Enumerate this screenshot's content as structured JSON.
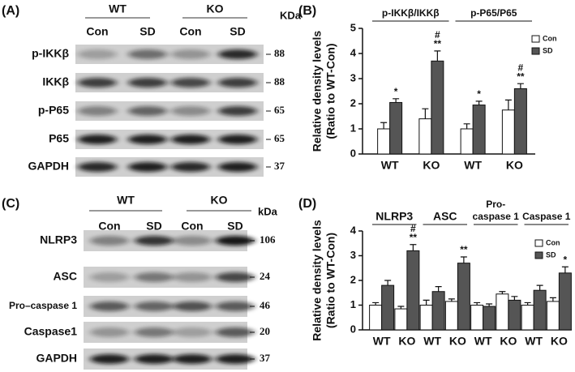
{
  "blot_panels": [
    {
      "label": "(A)",
      "groups": [
        {
          "label": "WT",
          "lanes": [
            "Con",
            "SD"
          ]
        },
        {
          "label": "KO",
          "lanes": [
            "Con",
            "SD"
          ]
        }
      ],
      "unit": "KDa",
      "rows": [
        {
          "name": "p-IKKβ",
          "kda": 88
        },
        {
          "name": "IKKβ",
          "kda": 88
        },
        {
          "name": "p-P65",
          "kda": 65
        },
        {
          "name": "P65",
          "kda": 65
        },
        {
          "name": "GAPDH",
          "kda": 37
        }
      ]
    },
    {
      "label": "(C)",
      "groups": [
        {
          "label": "WT",
          "lanes": [
            "Con",
            "SD"
          ]
        },
        {
          "label": "KO",
          "lanes": [
            "Con",
            "SD"
          ]
        }
      ],
      "unit": "kDa",
      "rows": [
        {
          "name": "NLRP3",
          "kda": 106
        },
        {
          "name": "ASC",
          "kda": 24
        },
        {
          "name": "Pro–caspase 1",
          "kda": 46
        },
        {
          "name": "Caspase1",
          "kda": 20
        },
        {
          "name": "GAPDH",
          "kda": 37
        }
      ]
    }
  ],
  "chart_data": [
    {
      "type": "bar",
      "panel": "(B)",
      "ylabel": [
        "Relative density levels",
        "(Ratio to WT-Con)"
      ],
      "groups": [
        {
          "label": [
            "p-IKKβ/IKKβ"
          ],
          "categories": [
            "WT",
            "KO"
          ]
        },
        {
          "label": [
            "p-P65/P65"
          ],
          "categories": [
            "WT",
            "KO"
          ]
        }
      ],
      "series": [
        {
          "name": "Con",
          "color": "#ffffff",
          "values": [
            1.0,
            1.4,
            1.0,
            1.75
          ],
          "errors": [
            0.25,
            0.4,
            0.2,
            0.4
          ],
          "significance": [
            [],
            [],
            [],
            []
          ]
        },
        {
          "name": "SD",
          "color": "#555555",
          "values": [
            2.05,
            3.7,
            1.95,
            2.6
          ],
          "errors": [
            0.15,
            0.4,
            0.15,
            0.2
          ],
          "significance": [
            [
              "*"
            ],
            [
              "#",
              "**"
            ],
            [
              "*"
            ],
            [
              "#",
              "**"
            ]
          ]
        }
      ],
      "ylim": [
        0,
        5
      ],
      "yticks": [
        0,
        1,
        2,
        3,
        4,
        5
      ]
    },
    {
      "type": "bar",
      "panel": "(D)",
      "ylabel": [
        "Relative density levels",
        "(Ratio to WT-Con)"
      ],
      "groups": [
        {
          "label": [
            "NLRP3"
          ],
          "categories": [
            "WT",
            "KO"
          ]
        },
        {
          "label": [
            "ASC"
          ],
          "categories": [
            "WT",
            "KO"
          ]
        },
        {
          "label": [
            "Pro-",
            "caspase 1"
          ],
          "categories": [
            "WT",
            "KO"
          ]
        },
        {
          "label": [
            "Caspase 1"
          ],
          "categories": [
            "WT",
            "KO"
          ]
        }
      ],
      "series": [
        {
          "name": "Con",
          "color": "#ffffff",
          "values": [
            1.0,
            0.85,
            1.0,
            1.15,
            1.0,
            1.45,
            1.0,
            1.15
          ],
          "errors": [
            0.1,
            0.1,
            0.2,
            0.1,
            0.1,
            0.1,
            0.1,
            0.15
          ],
          "significance": [
            [],
            [],
            [],
            [],
            [],
            [],
            [],
            []
          ]
        },
        {
          "name": "SD",
          "color": "#555555",
          "values": [
            1.8,
            3.2,
            1.55,
            2.7,
            0.95,
            1.2,
            1.6,
            2.3
          ],
          "errors": [
            0.2,
            0.25,
            0.2,
            0.25,
            0.1,
            0.15,
            0.2,
            0.25
          ],
          "significance": [
            [],
            [
              "#",
              "**"
            ],
            [],
            [
              "**"
            ],
            [],
            [],
            [],
            [
              "*"
            ]
          ]
        }
      ],
      "ylim": [
        0,
        4
      ],
      "yticks": [
        0,
        1,
        2,
        3,
        4
      ]
    }
  ]
}
